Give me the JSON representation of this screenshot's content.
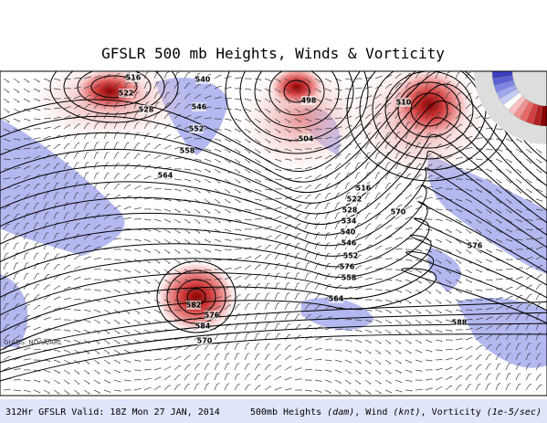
{
  "header": {
    "title": "GFSLR 500 mb Heights, Winds & Vorticity"
  },
  "map": {
    "credit": "GrADS: NOAA/ARL",
    "contour_labels": [
      "516",
      "522",
      "528",
      "540",
      "546",
      "552",
      "558",
      "564",
      "498",
      "504",
      "510",
      "516",
      "522",
      "528",
      "534",
      "540",
      "546",
      "552",
      "558",
      "564",
      "570",
      "576",
      "582",
      "588",
      "576",
      "584",
      "570",
      "576"
    ]
  },
  "footer": {
    "left": "312Hr GFSLR Valid: 18Z Mon 27 JAN, 2014",
    "right": [
      "500mb Heights ",
      "(dam)",
      ", Wind ",
      "(knt)",
      ", Vorticity ",
      "(1e-5/sec)"
    ]
  }
}
